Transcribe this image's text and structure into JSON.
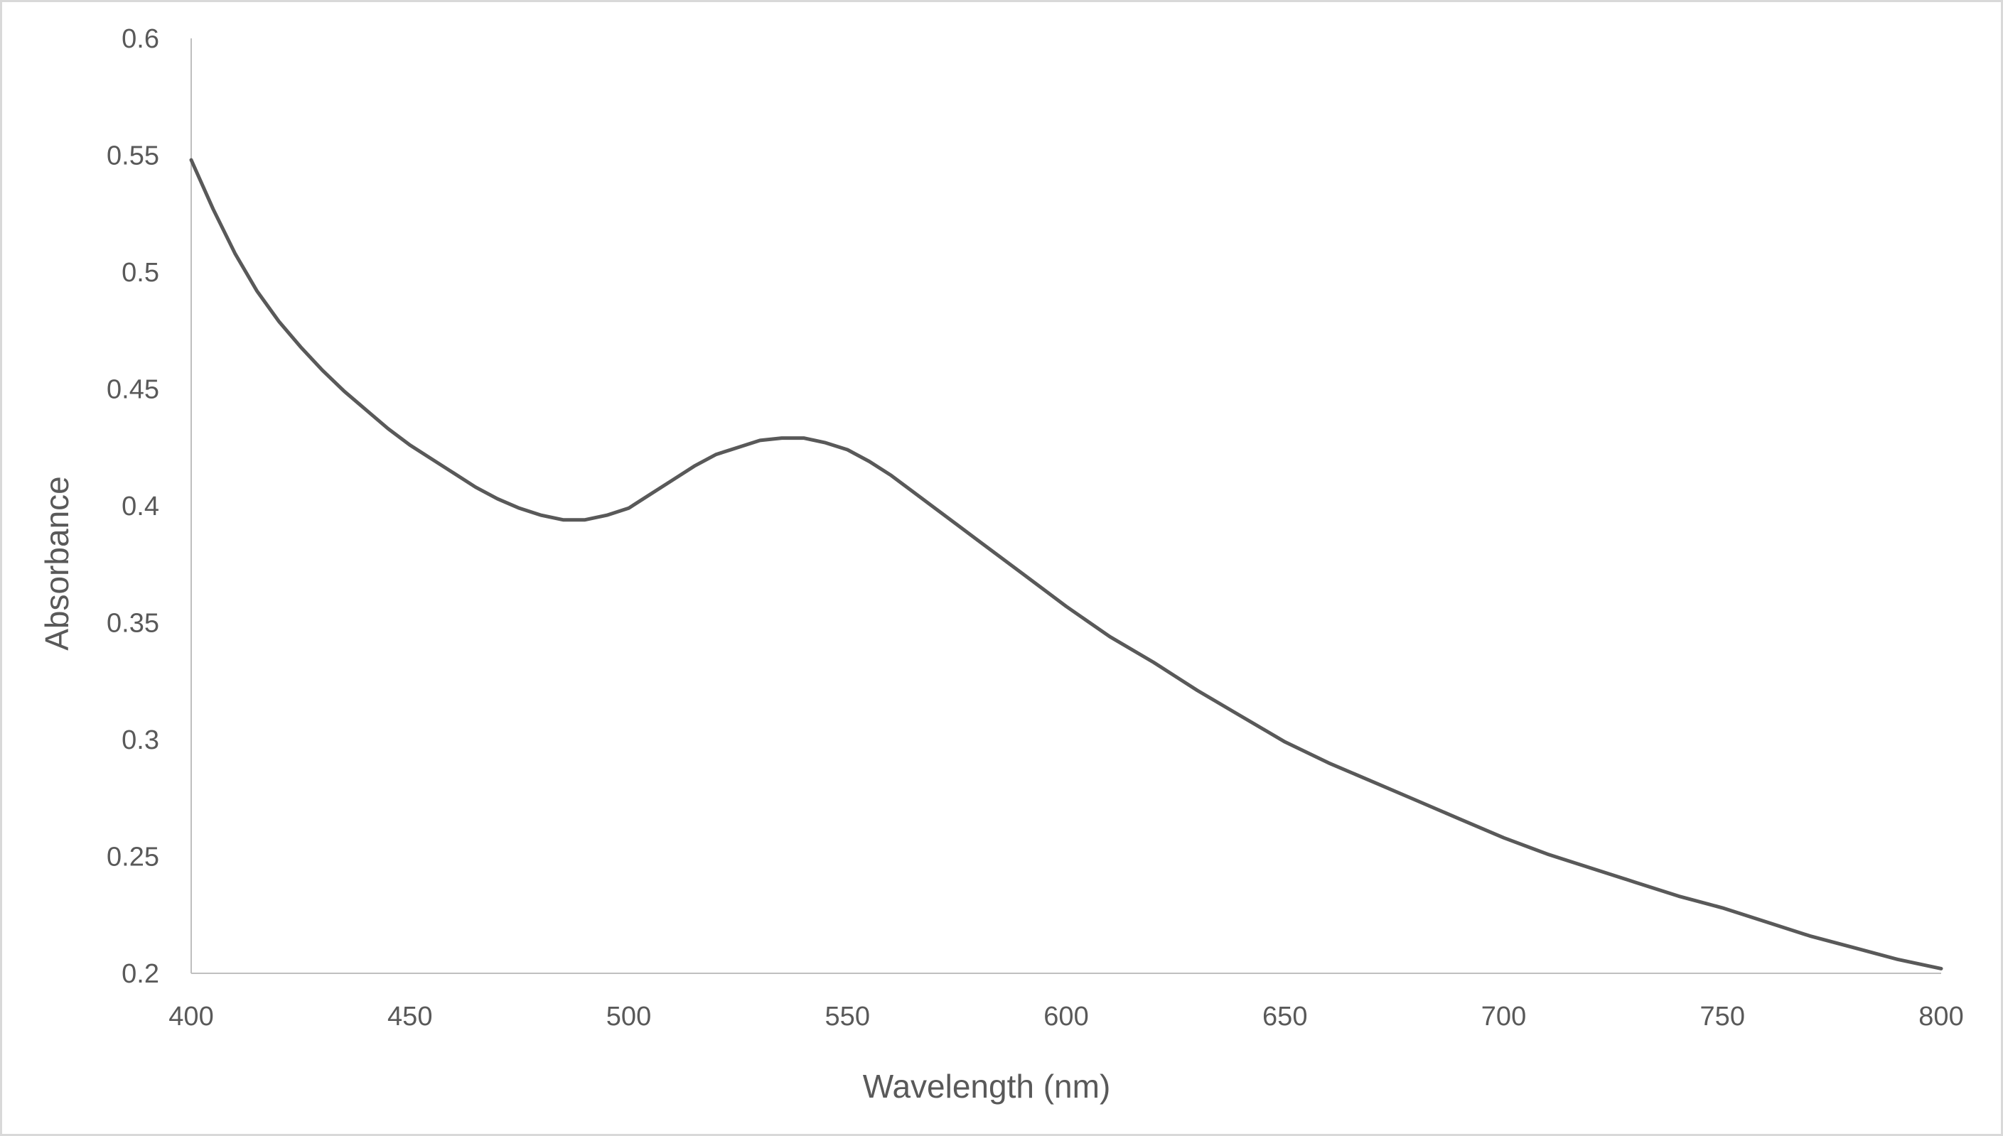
{
  "chart_data": {
    "type": "line",
    "title": "",
    "xlabel": "Wavelength (nm)",
    "ylabel": "Absorbance",
    "xlim": [
      400,
      800
    ],
    "ylim": [
      0.2,
      0.6
    ],
    "x_ticks": [
      "400",
      "450",
      "500",
      "550",
      "600",
      "650",
      "700",
      "750",
      "800"
    ],
    "y_ticks": [
      "0.2",
      "0.25",
      "0.3",
      "0.35",
      "0.4",
      "0.45",
      "0.5",
      "0.55",
      "0.6"
    ],
    "grid": false,
    "legend": "none",
    "line_color": "#595959",
    "axis_color": "#bfbfbf",
    "text_color": "#595959",
    "series": [
      {
        "x": [
          400,
          405,
          410,
          415,
          420,
          425,
          430,
          435,
          440,
          445,
          450,
          455,
          460,
          465,
          470,
          475,
          480,
          485,
          490,
          495,
          500,
          505,
          510,
          515,
          520,
          525,
          530,
          535,
          540,
          545,
          550,
          555,
          560,
          565,
          570,
          575,
          580,
          585,
          590,
          595,
          600,
          610,
          620,
          630,
          640,
          650,
          660,
          670,
          680,
          690,
          700,
          710,
          720,
          730,
          740,
          750,
          760,
          770,
          780,
          790,
          800
        ],
        "y": [
          0.548,
          0.527,
          0.508,
          0.492,
          0.479,
          0.468,
          0.458,
          0.449,
          0.441,
          0.433,
          0.426,
          0.42,
          0.414,
          0.408,
          0.403,
          0.399,
          0.396,
          0.394,
          0.394,
          0.396,
          0.399,
          0.405,
          0.411,
          0.417,
          0.422,
          0.425,
          0.428,
          0.429,
          0.429,
          0.427,
          0.424,
          0.419,
          0.413,
          0.406,
          0.399,
          0.392,
          0.385,
          0.378,
          0.371,
          0.364,
          0.357,
          0.344,
          0.333,
          0.321,
          0.31,
          0.299,
          0.29,
          0.282,
          0.274,
          0.266,
          0.258,
          0.251,
          0.245,
          0.239,
          0.233,
          0.228,
          0.222,
          0.216,
          0.211,
          0.206,
          0.202
        ]
      }
    ]
  }
}
